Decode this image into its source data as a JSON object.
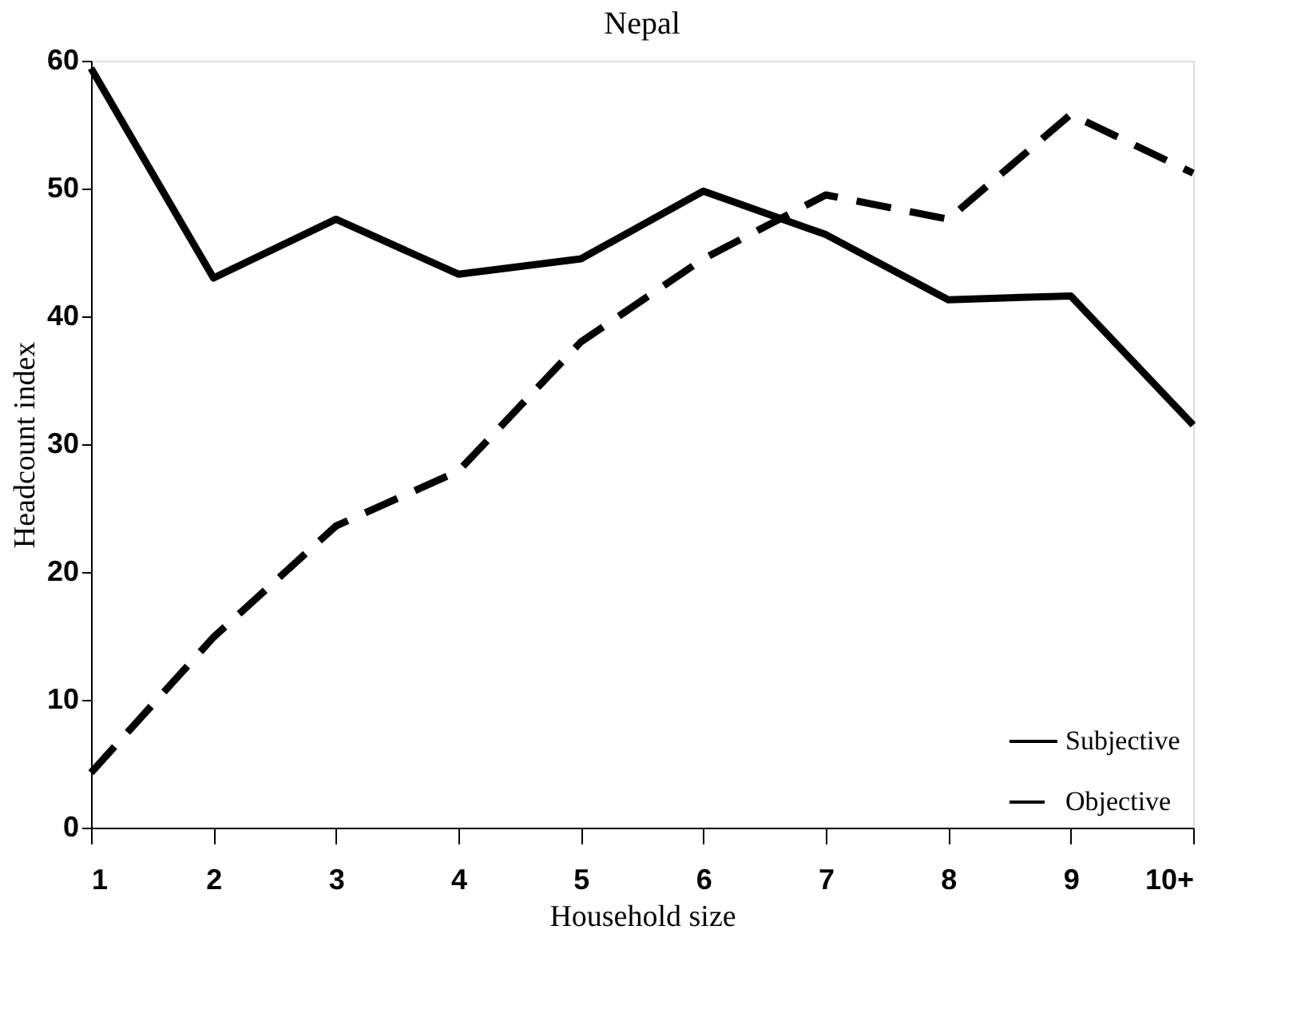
{
  "chart_data": {
    "type": "line",
    "title": "Nepal",
    "xlabel": "Household size",
    "ylabel": "Headcount index",
    "categories": [
      "1",
      "2",
      "3",
      "4",
      "5",
      "6",
      "7",
      "8",
      "9",
      "10+"
    ],
    "series": [
      {
        "name": "Subjective",
        "color": "#000000",
        "line_style": "solid",
        "values": [
          59.4,
          43.0,
          47.6,
          43.3,
          44.5,
          49.8,
          46.4,
          41.3,
          41.6,
          31.5
        ]
      },
      {
        "name": "Objective",
        "color": "#000000",
        "line_style": "dashed",
        "values": [
          4.3,
          14.9,
          23.6,
          27.9,
          38.0,
          44.5,
          49.5,
          47.6,
          55.8,
          51.2
        ]
      }
    ],
    "ylim": [
      0,
      60
    ],
    "yticks": [
      0,
      10,
      20,
      30,
      40,
      50,
      60
    ],
    "grid": false,
    "legend": "bottom right",
    "marker": "none"
  }
}
